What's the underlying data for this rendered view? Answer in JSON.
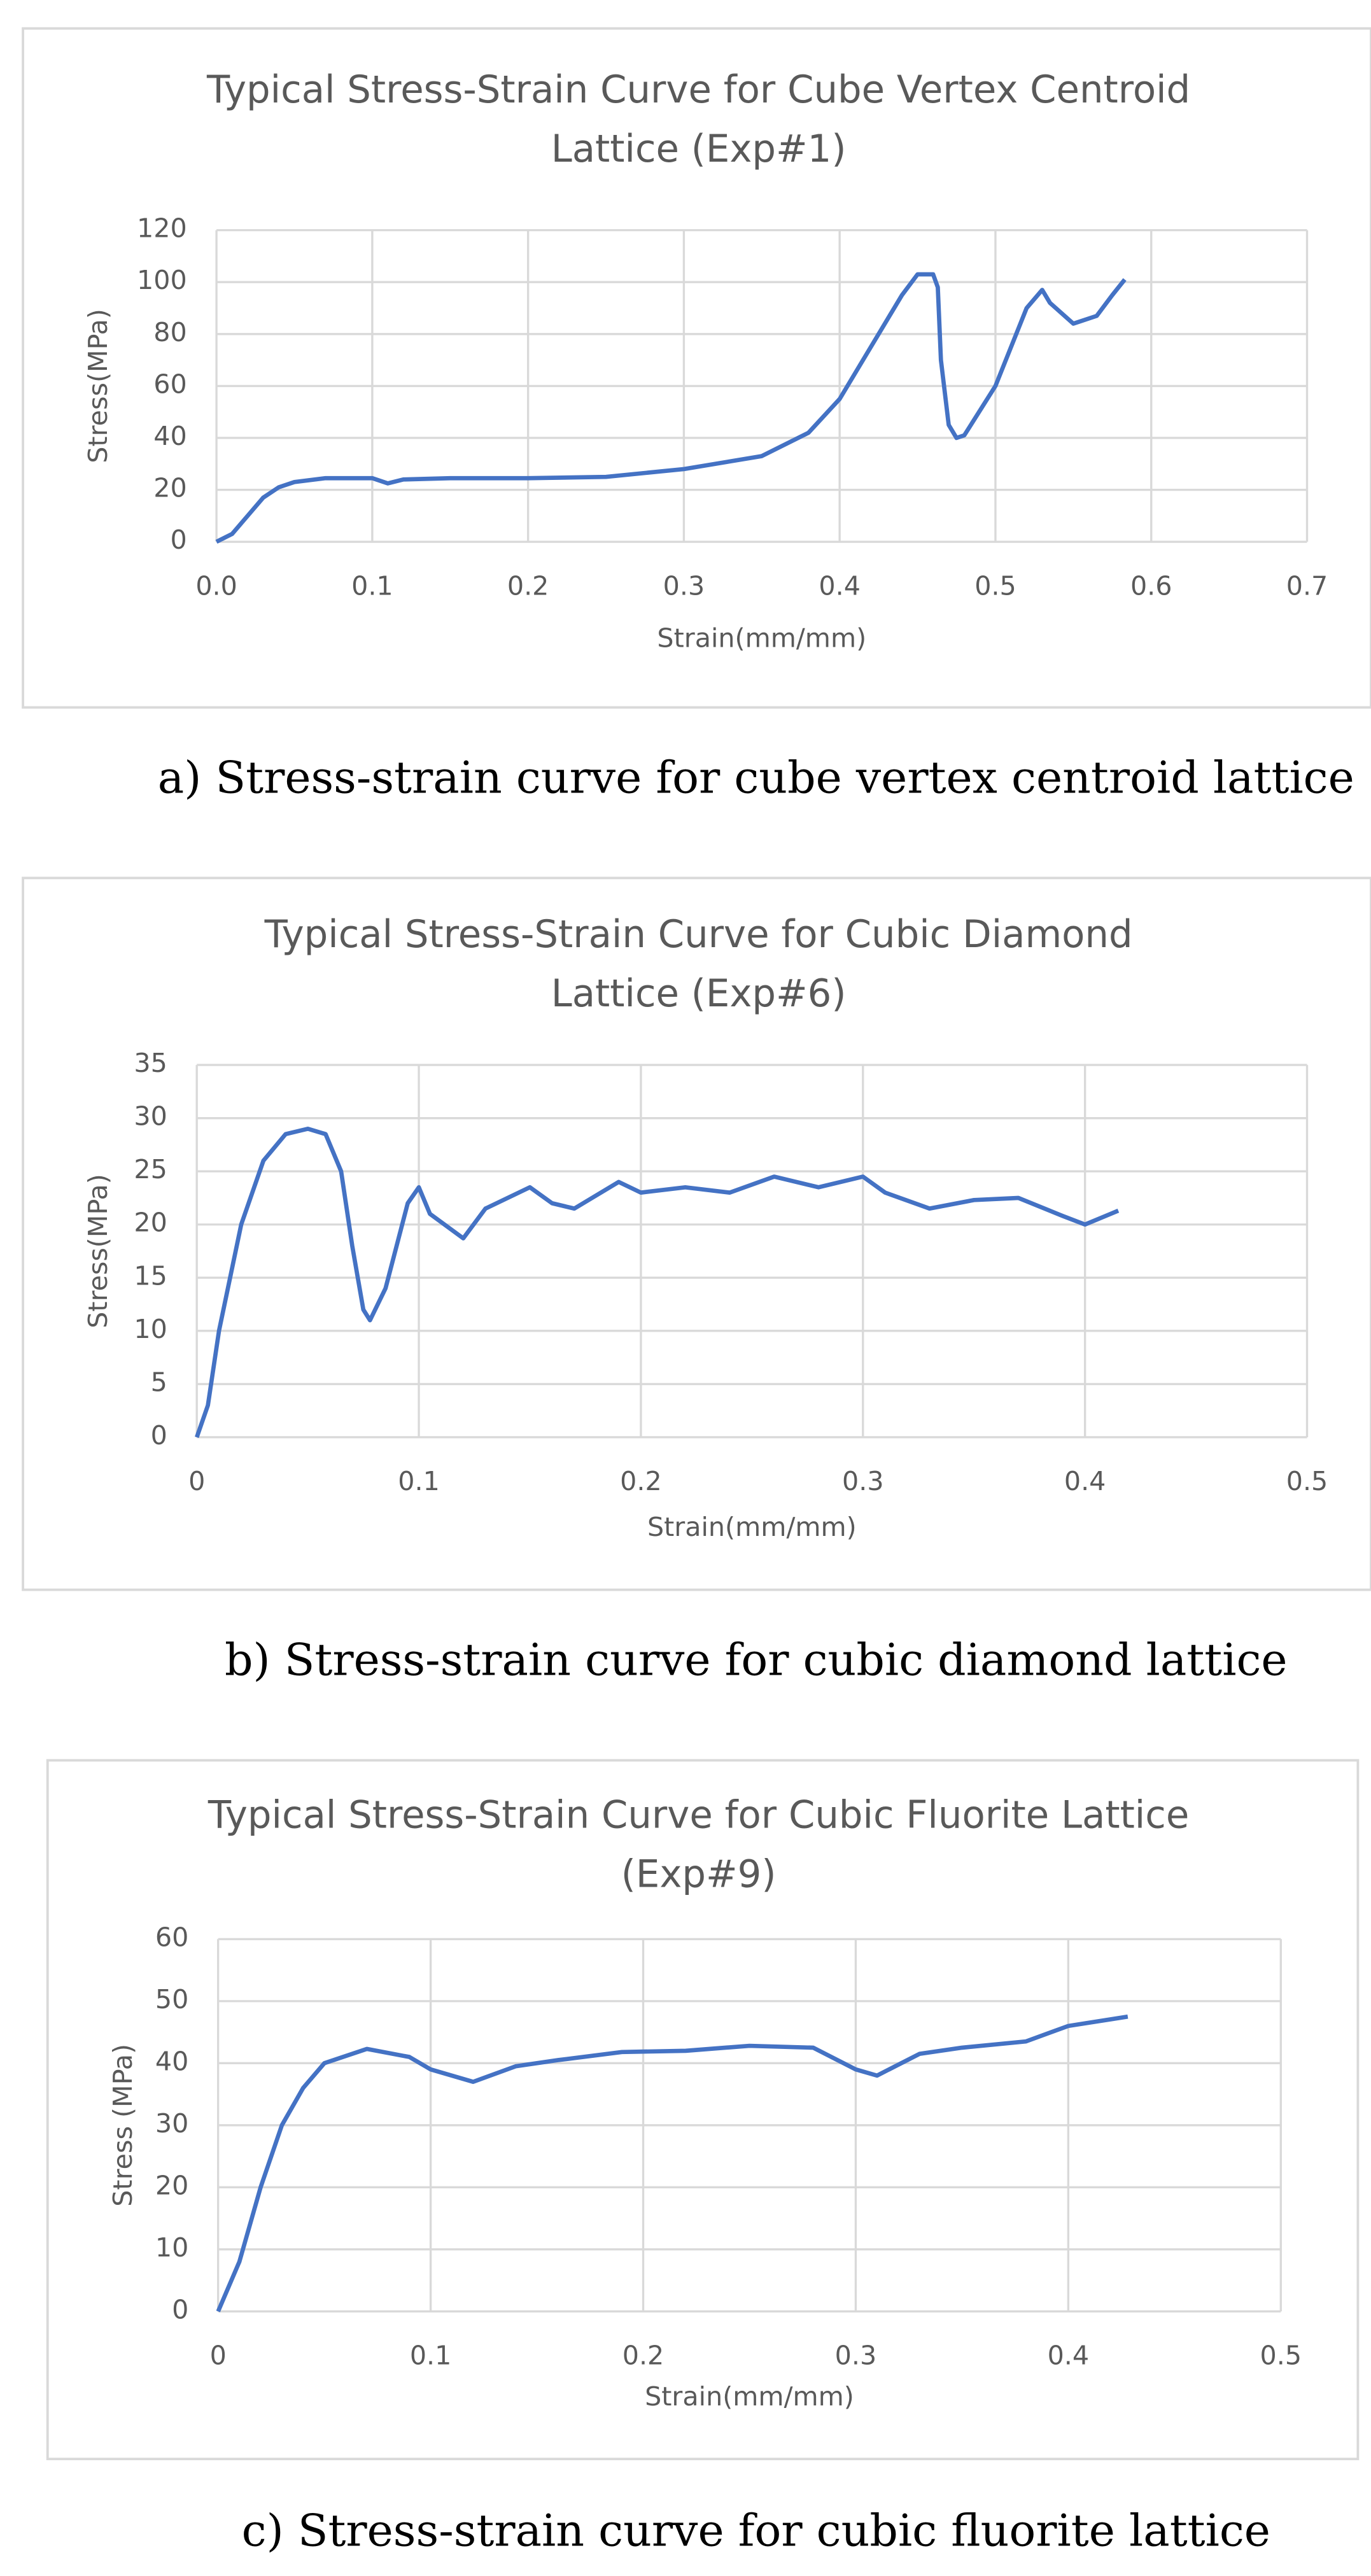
{
  "chart_data": [
    {
      "type": "line",
      "title": "Typical Stress-Strain Curve for Cube Vertex Centroid Lattice (Exp#1)",
      "xlabel": "Strain(mm/mm)",
      "ylabel": "Stress(MPa)",
      "caption": "a) Stress-strain curve for cube vertex centroid lattice",
      "x": [
        0,
        0.01,
        0.02,
        0.03,
        0.04,
        0.05,
        0.07,
        0.1,
        0.11,
        0.12,
        0.15,
        0.2,
        0.25,
        0.3,
        0.35,
        0.38,
        0.4,
        0.42,
        0.44,
        0.45,
        0.46,
        0.463,
        0.465,
        0.47,
        0.475,
        0.48,
        0.5,
        0.52,
        0.53,
        0.535,
        0.55,
        0.565,
        0.575,
        0.583
      ],
      "series": [
        {
          "color": "#4472c4",
          "values": [
            0,
            3,
            10,
            17,
            21,
            23,
            24.5,
            24.5,
            22.5,
            24,
            24.5,
            24.5,
            25,
            28,
            33,
            42,
            55,
            75,
            95,
            103,
            103,
            98,
            70,
            45,
            40,
            41,
            60,
            90,
            97,
            92,
            84,
            87,
            95,
            101
          ]
        }
      ],
      "xlim": [
        0,
        0.7
      ],
      "xticks": [
        {
          "value": 0,
          "label": "0.0"
        },
        0.1,
        0.2,
        0.3,
        0.4,
        0.5,
        0.6,
        0.7
      ],
      "ylim": [
        0,
        120
      ],
      "yticks": [
        0,
        20,
        40,
        60,
        80,
        100,
        120
      ],
      "grid": true
    },
    {
      "type": "line",
      "title": "Typical Stress-Strain Curve for Cubic Diamond Lattice (Exp#6)",
      "xlabel": "Strain(mm/mm)",
      "ylabel": "Stress(MPa)",
      "caption": "b) Stress-strain curve for cubic diamond lattice",
      "x": [
        0,
        0.005,
        0.01,
        0.02,
        0.03,
        0.04,
        0.05,
        0.058,
        0.065,
        0.07,
        0.075,
        0.078,
        0.085,
        0.095,
        0.1,
        0.105,
        0.12,
        0.13,
        0.15,
        0.16,
        0.17,
        0.19,
        0.2,
        0.22,
        0.24,
        0.26,
        0.28,
        0.29,
        0.3,
        0.31,
        0.33,
        0.35,
        0.37,
        0.39,
        0.4,
        0.415
      ],
      "series": [
        {
          "color": "#4472c4",
          "values": [
            0,
            3,
            10,
            20,
            26,
            28.5,
            29,
            28.5,
            25,
            18,
            12,
            11,
            14,
            22,
            23.5,
            21,
            18.7,
            21.5,
            23.5,
            22,
            21.5,
            24,
            23,
            23.5,
            23,
            24.5,
            23.5,
            24,
            24.5,
            23,
            21.5,
            22.3,
            22.5,
            20.8,
            20,
            21.3
          ]
        }
      ],
      "xlim": [
        0,
        0.5
      ],
      "xticks": [
        0,
        0.1,
        0.2,
        0.3,
        0.4,
        0.5
      ],
      "ylim": [
        0,
        35
      ],
      "yticks": [
        0,
        5,
        10,
        15,
        20,
        25,
        30,
        35
      ],
      "grid": true
    },
    {
      "type": "line",
      "title": "Typical Stress-Strain Curve for Cubic Fluorite Lattice (Exp#9)",
      "xlabel": "Strain(mm/mm)",
      "ylabel": "Stress (MPa)",
      "caption": "c) Stress-strain curve for cubic fluorite lattice",
      "x": [
        0,
        0.01,
        0.02,
        0.03,
        0.04,
        0.05,
        0.07,
        0.09,
        0.1,
        0.12,
        0.14,
        0.16,
        0.19,
        0.22,
        0.25,
        0.28,
        0.3,
        0.31,
        0.33,
        0.35,
        0.38,
        0.4,
        0.428
      ],
      "series": [
        {
          "color": "#4472c4",
          "values": [
            0,
            8,
            20,
            30,
            36,
            40,
            42.3,
            41,
            39,
            37,
            39.5,
            40.5,
            41.8,
            42,
            42.8,
            42.5,
            39,
            38,
            41.5,
            42.5,
            43.5,
            46,
            47.5
          ]
        }
      ],
      "xlim": [
        0,
        0.5
      ],
      "xticks": [
        0,
        0.1,
        0.2,
        0.3,
        0.4,
        0.5
      ],
      "ylim": [
        0,
        60
      ],
      "yticks": [
        0,
        10,
        20,
        30,
        40,
        50,
        60
      ],
      "grid": true
    }
  ]
}
